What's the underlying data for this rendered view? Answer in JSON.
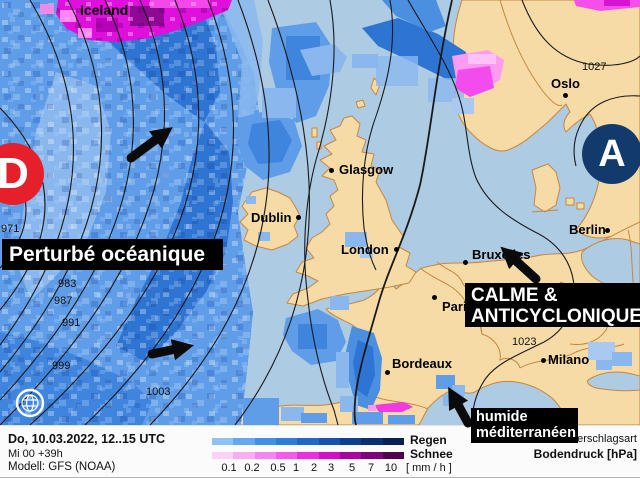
{
  "map": {
    "region_label": "Iceland",
    "pressure_centers": [
      {
        "symbol": "D",
        "type": "low",
        "color": "#e5202b"
      },
      {
        "symbol": "A",
        "type": "high",
        "color": "#123a6d"
      }
    ],
    "annotations": {
      "atlantic": "Perturbé océanique",
      "anticyclone_line1": "CALME &",
      "anticyclone_line2": "ANTICYCLONIQUE",
      "mediterranean_line1": "humide",
      "mediterranean_line2": "méditerranéen"
    },
    "cities": [
      {
        "name": "Glasgow"
      },
      {
        "name": "Dublin"
      },
      {
        "name": "London"
      },
      {
        "name": "Oslo"
      },
      {
        "name": "Berlin"
      },
      {
        "name": "Bruxelles"
      },
      {
        "name": "Paris"
      },
      {
        "name": "Bordeaux"
      },
      {
        "name": "Milano"
      }
    ],
    "isobar_labels": [
      "971",
      "983",
      "987",
      "991",
      "999",
      "1003",
      "1023",
      "1027"
    ]
  },
  "footer": {
    "valid_line": "Do, 10.03.2022, 12..15 UTC",
    "run_line": "Mi 00 +39h",
    "model_line": "Modell: GFS (NOAA)",
    "legend": {
      "rain_label": "Regen",
      "snow_label": "Schnee",
      "ticks": [
        "0.1",
        "0.2",
        "0.5",
        "1",
        "2",
        "3",
        "5",
        "7",
        "10"
      ],
      "unit": "[ mm / h ]",
      "rain_colors": [
        "#8fc1f5",
        "#66a8ef",
        "#4190e6",
        "#2e7dd9",
        "#2168c6",
        "#1653ad",
        "#0e4090",
        "#0a2f73",
        "#071f52"
      ],
      "snow_colors": [
        "#fcd1f7",
        "#f9aef3",
        "#f685ef",
        "#f25ce8",
        "#ea2fdd",
        "#cf10c5",
        "#a607a0",
        "#7b0579",
        "#4e034c"
      ]
    },
    "right": {
      "line1": "Niederschlagsart",
      "line2": "Bodendruck [hPa]"
    }
  }
}
